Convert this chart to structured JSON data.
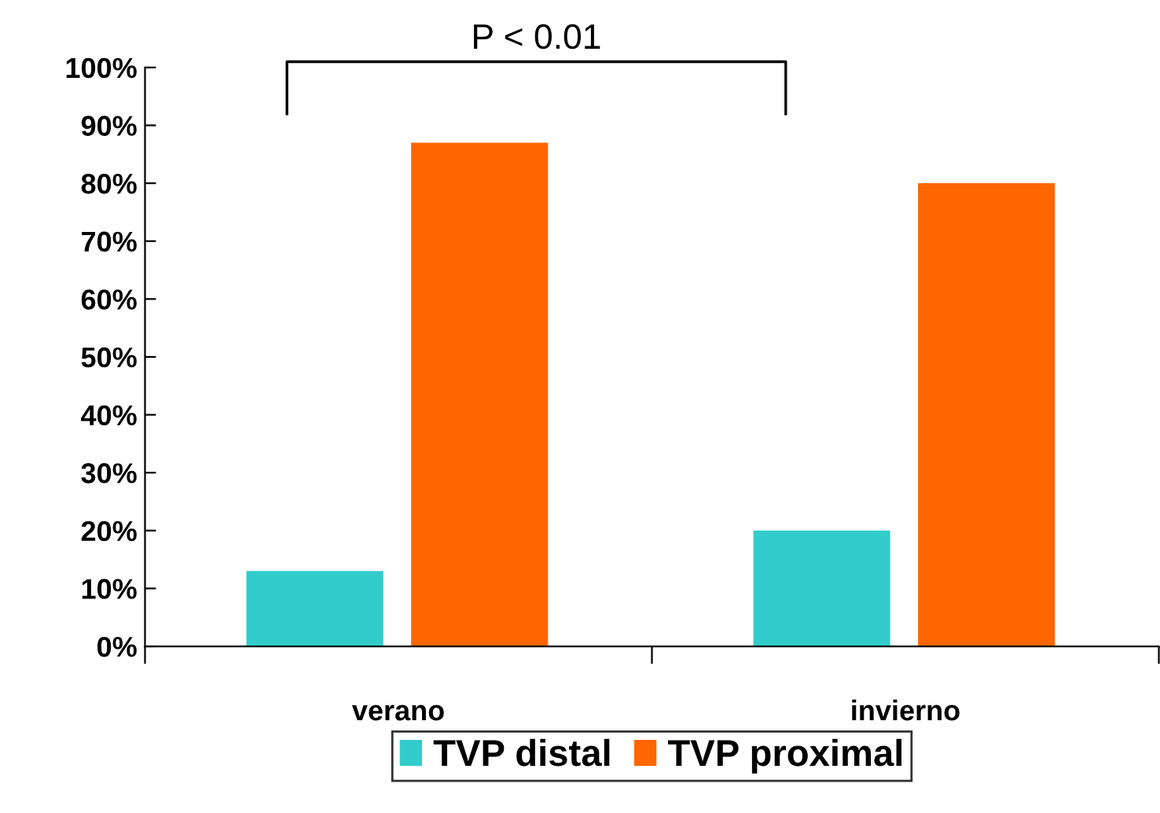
{
  "chart_data": {
    "type": "bar",
    "categories": [
      "verano",
      "invierno"
    ],
    "series": [
      {
        "name": "TVP distal",
        "color": "#33cccc",
        "values": [
          13,
          20
        ]
      },
      {
        "name": "TVP proximal",
        "color": "#ff6600",
        "values": [
          87,
          80
        ]
      }
    ],
    "ylim": [
      0,
      100
    ],
    "yticks": [
      {
        "value": 0,
        "label": "0%"
      },
      {
        "value": 10,
        "label": "10%"
      },
      {
        "value": 20,
        "label": "20%"
      },
      {
        "value": 30,
        "label": "30%"
      },
      {
        "value": 40,
        "label": "40%"
      },
      {
        "value": 50,
        "label": "50%"
      },
      {
        "value": 60,
        "label": "60%"
      },
      {
        "value": 70,
        "label": "70%"
      },
      {
        "value": 80,
        "label": "80%"
      },
      {
        "value": 90,
        "label": "90%"
      },
      {
        "value": 100,
        "label": "100%"
      }
    ],
    "annotations": [
      "P < 0.01"
    ],
    "legend": "bottom",
    "grid": false
  }
}
